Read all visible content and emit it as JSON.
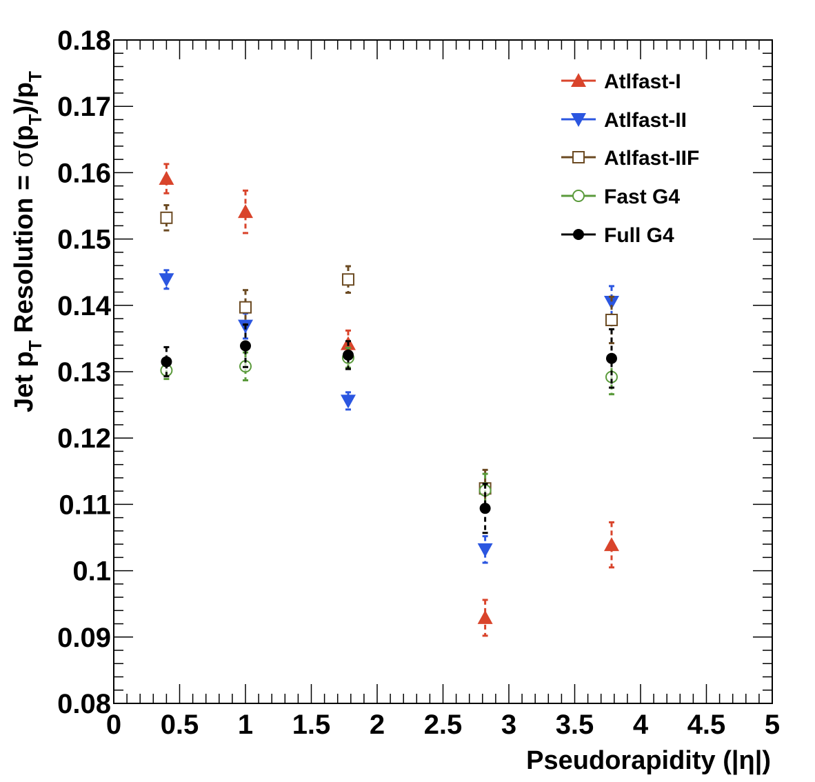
{
  "chart_data": {
    "type": "scatter",
    "title": "",
    "xlabel": "Pseudorapidity (|η|)",
    "ylabel_parts": {
      "a": "Jet p",
      "sub1": "T",
      "b": " Resolution = ",
      "sigma": "σ",
      "c": "(p",
      "sub2": "T",
      "d": ")/p",
      "sub3": "T"
    },
    "xlim": [
      0,
      5
    ],
    "ylim": [
      0.08,
      0.18
    ],
    "x_ticks": [
      {
        "value": 0,
        "label": "0"
      },
      {
        "value": 0.5,
        "label": "0.5"
      },
      {
        "value": 1,
        "label": "1"
      },
      {
        "value": 1.5,
        "label": "1.5"
      },
      {
        "value": 2,
        "label": "2"
      },
      {
        "value": 2.5,
        "label": "2.5"
      },
      {
        "value": 3,
        "label": "3"
      },
      {
        "value": 3.5,
        "label": "3.5"
      },
      {
        "value": 4,
        "label": "4"
      },
      {
        "value": 4.5,
        "label": "4.5"
      },
      {
        "value": 5,
        "label": "5"
      }
    ],
    "y_ticks": [
      {
        "value": 0.08,
        "label": "0.08"
      },
      {
        "value": 0.09,
        "label": "0.09"
      },
      {
        "value": 0.1,
        "label": "0.1"
      },
      {
        "value": 0.11,
        "label": "0.11"
      },
      {
        "value": 0.12,
        "label": "0.12"
      },
      {
        "value": 0.13,
        "label": "0.13"
      },
      {
        "value": 0.14,
        "label": "0.14"
      },
      {
        "value": 0.15,
        "label": "0.15"
      },
      {
        "value": 0.16,
        "label": "0.16"
      },
      {
        "value": 0.17,
        "label": "0.17"
      },
      {
        "value": 0.18,
        "label": "0.18"
      }
    ],
    "grid": false,
    "legend_position": "top-right",
    "series": [
      {
        "name": "Atlfast-I",
        "color": "#d9442b",
        "marker": "triangle-up",
        "filled": true,
        "points": [
          {
            "x": 0.4,
            "y": 0.1591,
            "err": 0.0022
          },
          {
            "x": 1.0,
            "y": 0.1541,
            "err": 0.0032
          },
          {
            "x": 1.78,
            "y": 0.1342,
            "err": 0.002
          },
          {
            "x": 2.82,
            "y": 0.0929,
            "err": 0.0027
          },
          {
            "x": 3.78,
            "y": 0.1039,
            "err": 0.0034
          }
        ]
      },
      {
        "name": "Atlfast-II",
        "color": "#2b56e0",
        "marker": "triangle-down",
        "filled": true,
        "points": [
          {
            "x": 0.4,
            "y": 0.1439,
            "err": 0.0014
          },
          {
            "x": 1.0,
            "y": 0.1369,
            "err": 0.0019
          },
          {
            "x": 1.78,
            "y": 0.1256,
            "err": 0.0013
          },
          {
            "x": 2.82,
            "y": 0.1032,
            "err": 0.002
          },
          {
            "x": 3.78,
            "y": 0.1405,
            "err": 0.0024
          }
        ]
      },
      {
        "name": "Atlfast-IIF",
        "color": "#6b4a22",
        "marker": "square",
        "filled": false,
        "points": [
          {
            "x": 0.4,
            "y": 0.1532,
            "err": 0.0019
          },
          {
            "x": 1.0,
            "y": 0.1397,
            "err": 0.0026
          },
          {
            "x": 1.78,
            "y": 0.1439,
            "err": 0.002
          },
          {
            "x": 2.82,
            "y": 0.1124,
            "err": 0.0028
          },
          {
            "x": 3.78,
            "y": 0.1378,
            "err": 0.0035
          }
        ]
      },
      {
        "name": "Fast G4",
        "color": "#5a9a3b",
        "marker": "circle",
        "filled": false,
        "points": [
          {
            "x": 0.4,
            "y": 0.1302,
            "err": 0.0013
          },
          {
            "x": 1.0,
            "y": 0.1308,
            "err": 0.0021
          },
          {
            "x": 1.78,
            "y": 0.1321,
            "err": 0.0015
          },
          {
            "x": 2.82,
            "y": 0.1121,
            "err": 0.0025
          },
          {
            "x": 3.78,
            "y": 0.1292,
            "err": 0.0026
          }
        ]
      },
      {
        "name": "Full G4",
        "color": "#000000",
        "marker": "circle",
        "filled": true,
        "points": [
          {
            "x": 0.4,
            "y": 0.1315,
            "err": 0.0022
          },
          {
            "x": 1.0,
            "y": 0.1339,
            "err": 0.0032
          },
          {
            "x": 1.78,
            "y": 0.1325,
            "err": 0.0021
          },
          {
            "x": 2.82,
            "y": 0.1094,
            "err": 0.0037
          },
          {
            "x": 3.78,
            "y": 0.132,
            "err": 0.0044
          }
        ]
      }
    ]
  }
}
